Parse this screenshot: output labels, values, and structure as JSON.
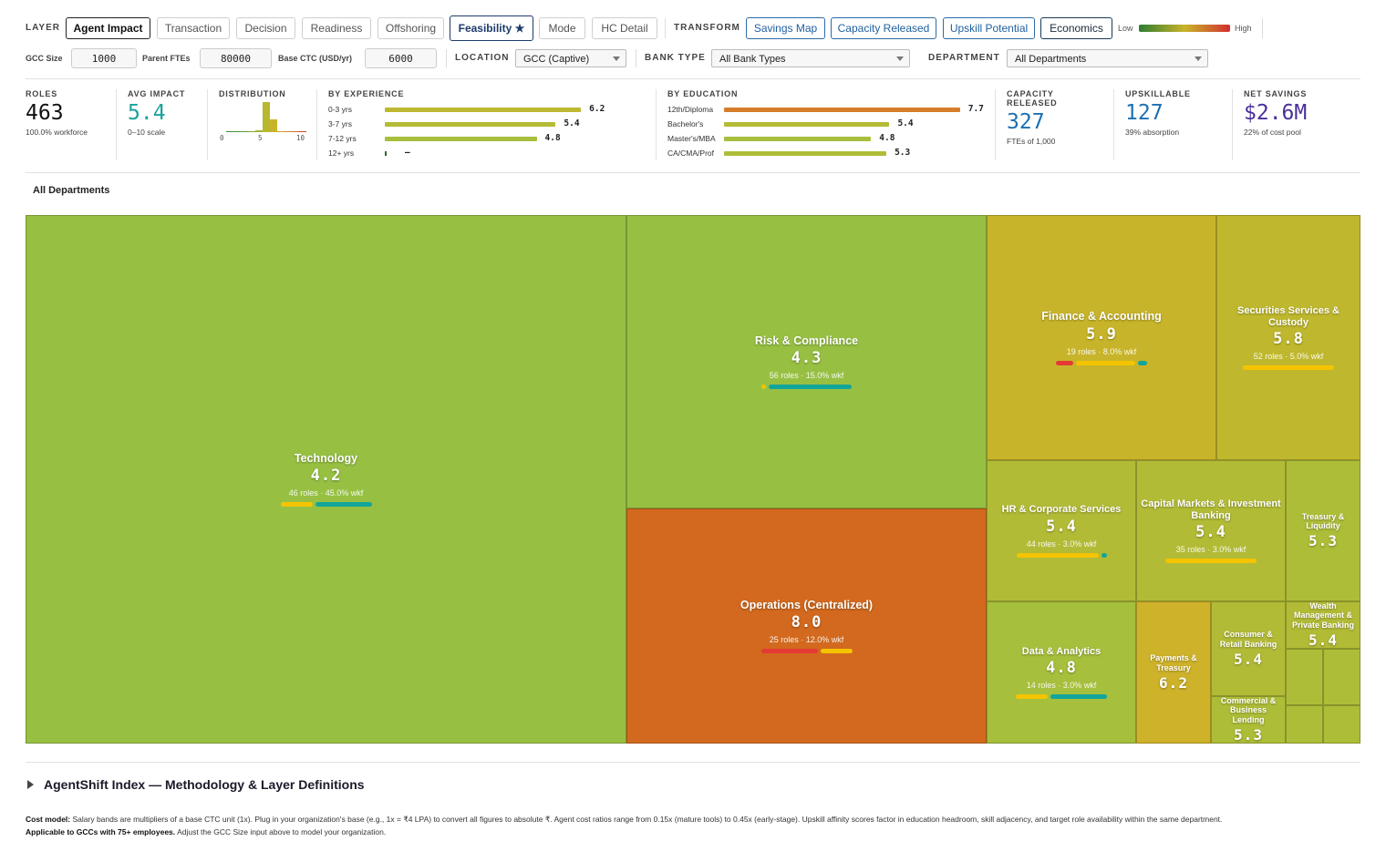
{
  "toolbar": {
    "layer_label": "LAYER",
    "layers": [
      "Agent Impact",
      "Transaction",
      "Decision",
      "Readiness",
      "Offshoring",
      "Feasibility ★",
      "Mode",
      "HC Detail"
    ],
    "transform_label": "TRANSFORM",
    "transforms": [
      "Savings Map",
      "Capacity Released",
      "Upskill Potential",
      "Economics"
    ],
    "legend_low": "Low",
    "legend_high": "High",
    "legend_colors": [
      "#2e7d32",
      "#c8b42a",
      "#d32f2f"
    ]
  },
  "inputs": {
    "gcc_size_label": "GCC Size",
    "gcc_size": "1000",
    "parent_ftes_label": "Parent FTEs",
    "parent_ftes": "80000",
    "base_ctc_label": "Base CTC (USD/yr)",
    "base_ctc": "6000",
    "location_label": "LOCATION",
    "location": "GCC (Captive)",
    "bank_type_label": "BANK TYPE",
    "bank_type": "All Bank Types",
    "department_label": "DEPARTMENT",
    "department": "All Departments"
  },
  "stats": {
    "roles": {
      "label": "ROLES",
      "value": 463,
      "sub": "100.0% workforce"
    },
    "avg_impact": {
      "label": "AVG IMPACT",
      "value": 5.4,
      "sub": "0–10 scale"
    },
    "distribution": {
      "label": "DISTRIBUTION",
      "axis": [
        "0",
        "5",
        "10"
      ],
      "counts": [
        1,
        1,
        1,
        1,
        2,
        33,
        14,
        1,
        1,
        1,
        1
      ],
      "colors": [
        "#3c8a3c",
        "#4a933a",
        "#5a9c38",
        "#7aaa36",
        "#9cb534",
        "#b8b830",
        "#c8b42a",
        "#d6a02a",
        "#d4822a",
        "#d06a28",
        "#c84a28"
      ]
    },
    "by_experience": {
      "label": "BY EXPERIENCE",
      "rows": [
        {
          "label": "0-3 yrs",
          "value": 6.2,
          "color": "#bdb832"
        },
        {
          "label": "3-7 yrs",
          "value": 5.4,
          "color": "#b4bb35"
        },
        {
          "label": "7-12 yrs",
          "value": 4.8,
          "color": "#a6bf3c"
        },
        {
          "label": "12+ yrs",
          "value": null,
          "value_label": "—",
          "color": "#2e6b2e"
        }
      ]
    },
    "by_education": {
      "label": "BY EDUCATION",
      "rows": [
        {
          "label": "12th/Diploma",
          "value": 7.7,
          "color": "#d67d2a"
        },
        {
          "label": "Bachelor's",
          "value": 5.4,
          "color": "#b4bb35"
        },
        {
          "label": "Master's/MBA",
          "value": 4.8,
          "color": "#a6bf3c"
        },
        {
          "label": "CA/CMA/Prof",
          "value": 5.3,
          "color": "#aebd38"
        }
      ]
    },
    "capacity": {
      "label": "CAPACITY RELEASED",
      "value": 327,
      "sub": "FTEs of 1,000"
    },
    "upskillable": {
      "label": "UPSKILLABLE",
      "value": 127,
      "sub": "39% absorption"
    },
    "net_savings": {
      "label": "NET SAVINGS",
      "value": "$2.6M",
      "sub": "22% of cost pool"
    }
  },
  "breadcrumb": "All Departments",
  "treemap": {
    "tiles": [
      {
        "name": "Technology",
        "score": 4.2,
        "meta": "46 roles · 45.0% wkf",
        "color": "#97c043"
      },
      {
        "name": "Risk & Compliance",
        "score": 4.3,
        "meta": "56 roles · 15.0% wkf",
        "color": "#97c043"
      },
      {
        "name": "Operations (Centralized)",
        "score": 8,
        "score_label": "8.0",
        "meta": "25 roles · 12.0% wkf",
        "color": "#d2691e"
      },
      {
        "name": "Finance & Accounting",
        "score": 5.9,
        "meta": "19 roles · 8.0% wkf",
        "color": "#c7b42a"
      },
      {
        "name": "Securities Services & Custody",
        "score": 5.8,
        "meta": "52 roles · 5.0% wkf",
        "color": "#bfb82e"
      },
      {
        "name": "HR & Corporate Services",
        "score": 5.4,
        "meta": "44 roles · 3.0% wkf",
        "color": "#b2bb36"
      },
      {
        "name": "Capital Markets & Investment Banking",
        "score": 5.4,
        "meta": "35 roles · 3.0% wkf",
        "color": "#b2bb36"
      },
      {
        "name": "Treasury & Liquidity",
        "score": 5.3,
        "color": "#adbd38"
      },
      {
        "name": "Data & Analytics",
        "score": 4.8,
        "meta": "14 roles · 3.0% wkf",
        "color": "#a6bf3c"
      },
      {
        "name": "Payments & Treasury",
        "score": 6.2,
        "color": "#cdb22a"
      },
      {
        "name": "Consumer & Retail Banking",
        "score": 5.4,
        "color": "#b2bb36"
      },
      {
        "name": "Commercial & Business Lending",
        "score": 5.3,
        "color": "#adbd38"
      },
      {
        "name": "Wealth Management & Private Banking",
        "score": 5.4,
        "color": "#b2bb36"
      }
    ]
  },
  "methodology_title": "AgentShift Index — Methodology & Layer Definitions",
  "footnote": {
    "cost_model_label": "Cost model:",
    "cost_model_text": "Salary bands are multipliers of a base CTC unit (1x). Plug in your organization's base (e.g., 1x = ₹4 LPA) to convert all figures to absolute ₹. Agent cost ratios range from 0.15x (mature tools) to 0.45x (early-stage). Upskill affinity scores factor in education headroom, skill adjacency, and target role availability within the same department.",
    "applicability_label": "Applicable to GCCs with 75+ employees.",
    "applicability_text": "Adjust the GCC Size input above to model your organization."
  }
}
